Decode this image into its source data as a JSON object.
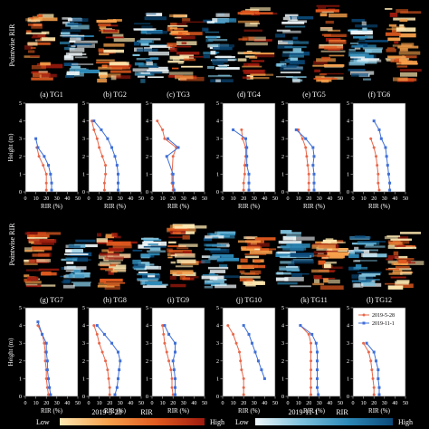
{
  "figure": {
    "row_ylabel": "Pointwise RIR",
    "axis_xlabel": "RIR (%)",
    "axis_ylabel": "Height (m)",
    "x_ticks": [
      0,
      10,
      20,
      30,
      40,
      50
    ],
    "y_ticks": [
      0,
      1,
      2,
      3,
      4,
      5
    ],
    "colorbars": [
      {
        "date": "2019-5-28",
        "label": "RIR",
        "low": "Low",
        "high": "High",
        "colors": [
          "#fde7b0",
          "#f6a04b",
          "#e15a1f",
          "#9e1a0e"
        ]
      },
      {
        "date": "2019-11-1",
        "label": "RIR",
        "low": "Low",
        "high": "High",
        "colors": [
          "#eef6f9",
          "#7fc2dd",
          "#2e8ab8",
          "#0b4a7a"
        ]
      }
    ],
    "colors": {
      "series1": "#e8674a",
      "series2": "#3f6fd8",
      "background": "#000000"
    }
  },
  "chart_data": [
    {
      "type": "line",
      "title": "(a) TG1",
      "xlim": [
        0,
        50
      ],
      "ylim": [
        0,
        5
      ],
      "series": [
        {
          "name": "2019-5-28",
          "points": [
            [
              20,
              0.1
            ],
            [
              20,
              0.5
            ],
            [
              20,
              1
            ],
            [
              17,
              1.5
            ],
            [
              13,
              2
            ],
            [
              11,
              2.5
            ]
          ]
        },
        {
          "name": "2019-11-1",
          "points": [
            [
              25,
              0.1
            ],
            [
              25,
              0.5
            ],
            [
              24,
              1
            ],
            [
              22,
              1.5
            ],
            [
              18,
              2
            ],
            [
              12,
              2.5
            ],
            [
              10,
              3
            ]
          ]
        }
      ]
    },
    {
      "type": "line",
      "title": "(b) TG2",
      "xlim": [
        0,
        50
      ],
      "ylim": [
        0,
        5
      ],
      "series": [
        {
          "name": "2019-5-28",
          "points": [
            [
              15,
              0.1
            ],
            [
              15,
              0.5
            ],
            [
              16,
              1
            ],
            [
              16,
              1.5
            ],
            [
              13,
              2
            ],
            [
              10,
              2.5
            ],
            [
              8,
              3
            ],
            [
              5,
              3.5
            ],
            [
              3,
              4
            ]
          ]
        },
        {
          "name": "2019-11-1",
          "points": [
            [
              28,
              0.1
            ],
            [
              28,
              0.5
            ],
            [
              28,
              1
            ],
            [
              27,
              1.5
            ],
            [
              25,
              2
            ],
            [
              22,
              2.5
            ],
            [
              18,
              3
            ],
            [
              12,
              3.5
            ],
            [
              5,
              4
            ]
          ]
        }
      ]
    },
    {
      "type": "line",
      "title": "(c) TG3",
      "xlim": [
        0,
        50
      ],
      "ylim": [
        0,
        5
      ],
      "series": [
        {
          "name": "2019-5-28",
          "points": [
            [
              20,
              0.1
            ],
            [
              19,
              0.5
            ],
            [
              19,
              1
            ],
            [
              20,
              2
            ],
            [
              23,
              2.5
            ],
            [
              12,
              3
            ],
            [
              10,
              3.5
            ],
            [
              5,
              4
            ]
          ]
        },
        {
          "name": "2019-11-1",
          "points": [
            [
              21,
              0.1
            ],
            [
              20,
              0.5
            ],
            [
              20,
              1
            ],
            [
              14,
              2
            ],
            [
              25,
              2.5
            ],
            [
              15,
              3
            ]
          ]
        }
      ]
    },
    {
      "type": "line",
      "title": "(d) TG4",
      "xlim": [
        0,
        50
      ],
      "ylim": [
        0,
        5
      ],
      "series": [
        {
          "name": "2019-5-28",
          "points": [
            [
              20,
              0.1
            ],
            [
              20,
              0.5
            ],
            [
              21,
              1
            ],
            [
              21,
              1.5
            ],
            [
              22,
              2
            ],
            [
              22,
              2.5
            ],
            [
              19,
              3
            ],
            [
              18,
              3.5
            ]
          ]
        },
        {
          "name": "2019-11-1",
          "points": [
            [
              25,
              0.1
            ],
            [
              25,
              0.5
            ],
            [
              25,
              1
            ],
            [
              23,
              1.5
            ],
            [
              23,
              2
            ],
            [
              23,
              2.5
            ],
            [
              22,
              3
            ],
            [
              10,
              3.5
            ]
          ]
        }
      ]
    },
    {
      "type": "line",
      "title": "(e) TG5",
      "xlim": [
        0,
        50
      ],
      "ylim": [
        0,
        5
      ],
      "series": [
        {
          "name": "2019-5-28",
          "points": [
            [
              20,
              0.1
            ],
            [
              20,
              0.5
            ],
            [
              20,
              1
            ],
            [
              19,
              1.5
            ],
            [
              18,
              2
            ],
            [
              17,
              2.5
            ],
            [
              14,
              3
            ],
            [
              10,
              3.5
            ]
          ]
        },
        {
          "name": "2019-11-1",
          "points": [
            [
              25,
              0.1
            ],
            [
              25,
              0.5
            ],
            [
              25,
              1
            ],
            [
              24,
              1.5
            ],
            [
              25,
              2
            ],
            [
              24,
              2.5
            ],
            [
              17,
              3
            ],
            [
              8,
              3.5
            ]
          ]
        }
      ]
    },
    {
      "type": "line",
      "title": "(f) TG6",
      "xlim": [
        0,
        50
      ],
      "ylim": [
        0,
        5
      ],
      "series": [
        {
          "name": "2019-5-28",
          "points": [
            [
              25,
              0.1
            ],
            [
              24,
              0.5
            ],
            [
              24,
              1
            ],
            [
              23,
              1.5
            ],
            [
              22,
              2
            ],
            [
              20,
              2.5
            ],
            [
              17,
              3
            ]
          ]
        },
        {
          "name": "2019-11-1",
          "points": [
            [
              35,
              0.1
            ],
            [
              35,
              0.5
            ],
            [
              34,
              1
            ],
            [
              33,
              1.5
            ],
            [
              32,
              2
            ],
            [
              31,
              2.5
            ],
            [
              27,
              3
            ],
            [
              25,
              3.5
            ],
            [
              20,
              4
            ]
          ]
        }
      ]
    },
    {
      "type": "line",
      "title": "(g) TG7",
      "xlim": [
        0,
        50
      ],
      "ylim": [
        0,
        5
      ],
      "series": [
        {
          "name": "2019-5-28",
          "points": [
            [
              22,
              0.1
            ],
            [
              21,
              0.5
            ],
            [
              20,
              1
            ],
            [
              20,
              1.5
            ],
            [
              19,
              2
            ],
            [
              19,
              2.5
            ],
            [
              18,
              3
            ],
            [
              16,
              3.5
            ],
            [
              12,
              4
            ]
          ]
        },
        {
          "name": "2019-11-1",
          "points": [
            [
              24,
              0.1
            ],
            [
              23,
              0.5
            ],
            [
              22,
              1
            ],
            [
              21,
              1.5
            ],
            [
              21,
              2
            ],
            [
              20,
              2.5
            ],
            [
              20,
              3
            ],
            [
              16,
              3.5
            ],
            [
              12,
              4.2
            ]
          ]
        }
      ]
    },
    {
      "type": "line",
      "title": "(h) TG8",
      "xlim": [
        0,
        50
      ],
      "ylim": [
        0,
        5
      ],
      "series": [
        {
          "name": "2019-5-28",
          "points": [
            [
              20,
              0.1
            ],
            [
              20,
              0.5
            ],
            [
              19,
              1
            ],
            [
              18,
              1.5
            ],
            [
              16,
              2
            ],
            [
              13,
              2.5
            ],
            [
              10,
              3
            ],
            [
              8,
              3.5
            ],
            [
              5,
              4
            ]
          ]
        },
        {
          "name": "2019-11-1",
          "points": [
            [
              25,
              0.1
            ],
            [
              27,
              0.5
            ],
            [
              28,
              1
            ],
            [
              29,
              1.5
            ],
            [
              30,
              2
            ],
            [
              28,
              2.5
            ],
            [
              22,
              3
            ],
            [
              15,
              3.5
            ],
            [
              8,
              4
            ]
          ]
        }
      ]
    },
    {
      "type": "line",
      "title": "(i) TG9",
      "xlim": [
        0,
        50
      ],
      "ylim": [
        0,
        5
      ],
      "series": [
        {
          "name": "2019-5-28",
          "points": [
            [
              20,
              0.1
            ],
            [
              19,
              0.5
            ],
            [
              19,
              1
            ],
            [
              18,
              1.5
            ],
            [
              16,
              2
            ],
            [
              14,
              2.5
            ],
            [
              12,
              3
            ],
            [
              11,
              3.5
            ],
            [
              10,
              4
            ]
          ]
        },
        {
          "name": "2019-11-1",
          "points": [
            [
              22,
              0.1
            ],
            [
              22,
              0.5
            ],
            [
              22,
              1
            ],
            [
              21,
              1.5
            ],
            [
              20,
              2
            ],
            [
              22,
              2.5
            ],
            [
              22,
              3
            ],
            [
              16,
              3.5
            ],
            [
              12,
              4
            ]
          ]
        }
      ]
    },
    {
      "type": "line",
      "title": "(j) TG10",
      "xlim": [
        0,
        50
      ],
      "ylim": [
        0,
        5
      ],
      "series": [
        {
          "name": "2019-5-28",
          "points": [
            [
              20,
              0.1
            ],
            [
              20,
              0.5
            ],
            [
              20,
              1
            ],
            [
              18,
              1.5
            ],
            [
              17,
              2
            ],
            [
              16,
              2.5
            ],
            [
              13,
              3
            ],
            [
              10,
              3.5
            ],
            [
              5,
              4
            ]
          ]
        },
        {
          "name": "2019-11-1",
          "points": [
            [
              40,
              1
            ],
            [
              37,
              1.5
            ],
            [
              34,
              2
            ],
            [
              31,
              2.5
            ],
            [
              28,
              3
            ],
            [
              25,
              3.5
            ],
            [
              20,
              4
            ]
          ]
        }
      ]
    },
    {
      "type": "line",
      "title": "(k) TG11",
      "xlim": [
        0,
        50
      ],
      "ylim": [
        0,
        5
      ],
      "series": [
        {
          "name": "2019-5-28",
          "points": [
            [
              22,
              0.1
            ],
            [
              22,
              0.5
            ],
            [
              22,
              1
            ],
            [
              22,
              1.5
            ],
            [
              22,
              2
            ],
            [
              22,
              2.5
            ],
            [
              22,
              3
            ],
            [
              20,
              3.5
            ],
            [
              12,
              4
            ]
          ]
        },
        {
          "name": "2019-11-1",
          "points": [
            [
              29,
              0.1
            ],
            [
              28,
              0.5
            ],
            [
              28,
              1
            ],
            [
              28,
              1.5
            ],
            [
              28,
              2
            ],
            [
              28,
              2.5
            ],
            [
              27,
              3
            ],
            [
              23,
              3.5
            ],
            [
              12,
              4
            ]
          ]
        }
      ]
    },
    {
      "type": "line",
      "title": "(l) TG12",
      "xlim": [
        0,
        50
      ],
      "ylim": [
        0,
        5
      ],
      "legend": "top-right",
      "series": [
        {
          "name": "2019-5-28",
          "points": [
            [
              20,
              0.1
            ],
            [
              20,
              0.5
            ],
            [
              19,
              1
            ],
            [
              18,
              1.5
            ],
            [
              17,
              2
            ],
            [
              15,
              2.5
            ],
            [
              10,
              3
            ]
          ]
        },
        {
          "name": "2019-11-1",
          "points": [
            [
              25,
              0.1
            ],
            [
              25,
              0.5
            ],
            [
              24,
              1
            ],
            [
              24,
              1.5
            ],
            [
              22,
              2
            ],
            [
              20,
              2.5
            ],
            [
              13,
              3
            ]
          ]
        }
      ]
    }
  ]
}
